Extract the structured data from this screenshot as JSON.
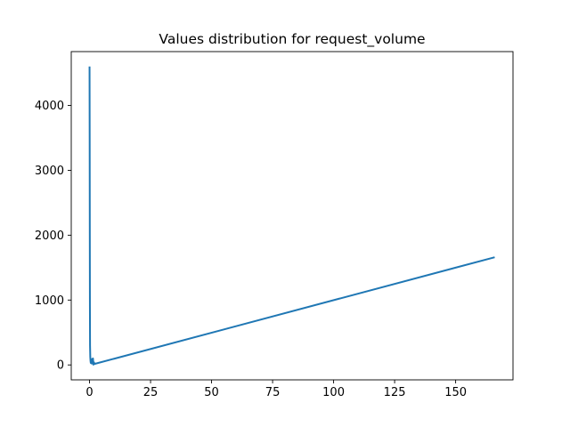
{
  "chart_data": {
    "type": "line",
    "title": "Values distribution for request_volume",
    "xlabel": "",
    "ylabel": "",
    "xlim": [
      -7.5,
      173.5
    ],
    "ylim": [
      -230,
      4830
    ],
    "xticks": [
      0,
      25,
      50,
      75,
      100,
      125,
      150
    ],
    "yticks": [
      0,
      1000,
      2000,
      3000,
      4000
    ],
    "grid": false,
    "series": [
      {
        "color": "#1f77b4",
        "x": [
          0.0,
          0.05,
          0.1,
          0.15,
          0.2,
          0.3,
          0.4,
          0.5,
          0.7,
          0.9,
          1.0,
          1.2,
          1.4,
          1.6,
          1.8,
          2.0,
          166.0
        ],
        "y": [
          4600,
          3500,
          2000,
          900,
          300,
          120,
          60,
          30,
          80,
          20,
          90,
          60,
          100,
          5,
          40,
          15,
          1660
        ]
      }
    ]
  }
}
